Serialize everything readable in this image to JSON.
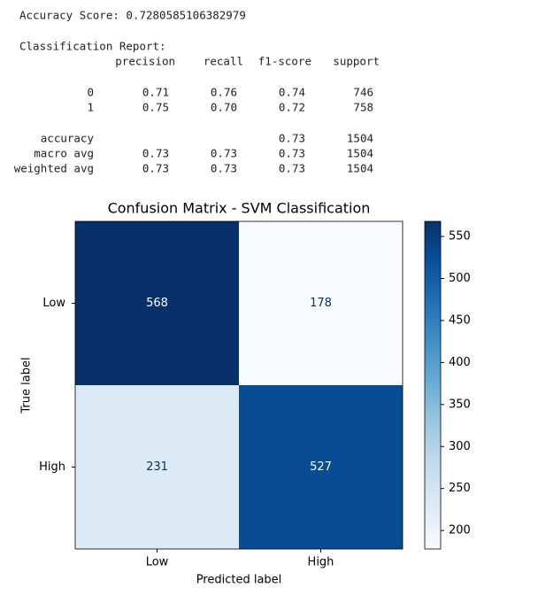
{
  "report": {
    "accuracy_line": "Accuracy Score: 0.7280585106382979",
    "heading": "Classification Report:",
    "columns": [
      "precision",
      "recall",
      "f1-score",
      "support"
    ],
    "rows": [
      {
        "label": "0",
        "cells": [
          "0.71",
          "0.76",
          "0.74",
          "746"
        ]
      },
      {
        "label": "1",
        "cells": [
          "0.75",
          "0.70",
          "0.72",
          "758"
        ]
      },
      {
        "label": "accuracy",
        "cells": [
          null,
          null,
          "0.73",
          "1504"
        ]
      },
      {
        "label": "macro avg",
        "cells": [
          "0.73",
          "0.73",
          "0.73",
          "1504"
        ]
      },
      {
        "label": "weighted avg",
        "cells": [
          "0.73",
          "0.73",
          "0.73",
          "1504"
        ]
      }
    ]
  },
  "chart_data": {
    "type": "heatmap",
    "title": "Confusion Matrix - SVM Classification",
    "x_label": "Predicted label",
    "y_label": "True label",
    "x_categories": [
      "Low",
      "High"
    ],
    "y_categories": [
      "Low",
      "High"
    ],
    "values": [
      [
        568,
        178
      ],
      [
        231,
        527
      ]
    ],
    "colormap": "Blues",
    "clim": [
      178,
      568
    ],
    "colorbar_ticks": [
      200,
      250,
      300,
      350,
      400,
      450,
      500,
      550
    ]
  }
}
